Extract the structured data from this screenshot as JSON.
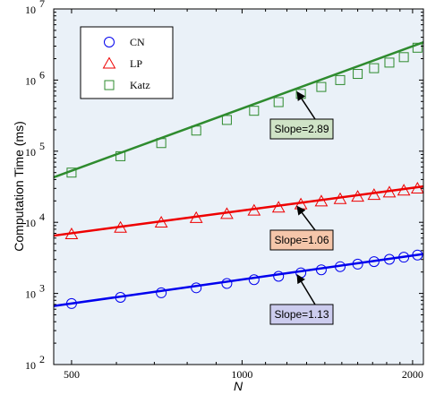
{
  "chart_data": {
    "type": "scatter",
    "title": "",
    "xlabel": "N",
    "ylabel": "Computation Time (ms)",
    "xscale": "log",
    "yscale": "log",
    "xlim": [
      465,
      2090
    ],
    "ylim": [
      100,
      10000000
    ],
    "xticks": [
      500,
      1000,
      2000
    ],
    "xtick_labels": [
      "500",
      "1000",
      "2000"
    ],
    "yticks": [
      100,
      1000,
      10000,
      100000,
      1000000,
      10000000
    ],
    "yticks_exp": [
      "2",
      "3",
      "4",
      "5",
      "6",
      "7"
    ],
    "ytick_base": "10",
    "x": [
      500,
      610,
      720,
      830,
      940,
      1050,
      1160,
      1270,
      1380,
      1490,
      1600,
      1710,
      1820,
      1930,
      2040
    ],
    "series": [
      {
        "name": "CN",
        "marker": "circle",
        "color": "#0000ee",
        "values": [
          720,
          880,
          1020,
          1200,
          1380,
          1560,
          1740,
          1950,
          2150,
          2380,
          2580,
          2800,
          3020,
          3230,
          3470
        ],
        "fit": {
          "x": [
            465,
            2090
          ],
          "y": [
            666,
            3580
          ]
        },
        "slope_label": "Slope=1.13",
        "label_fill": "#ccccee"
      },
      {
        "name": "LP",
        "marker": "triangle",
        "color": "#ee0000",
        "values": [
          6800,
          8400,
          9900,
          11500,
          13100,
          14600,
          16100,
          17900,
          19700,
          21200,
          22900,
          24300,
          26300,
          28000,
          29800
        ],
        "fit": {
          "x": [
            465,
            2090
          ],
          "y": [
            6500,
            32000
          ]
        },
        "slope_label": "Slope=1.06",
        "label_fill": "#f5c6aa"
      },
      {
        "name": "Katz",
        "marker": "square",
        "color": "#2e8b2e",
        "values": [
          50000,
          85000,
          130000,
          195000,
          275000,
          370000,
          490000,
          640000,
          800000,
          1000000,
          1220000,
          1470000,
          1760000,
          2100000,
          2850000
        ],
        "fit": {
          "x": [
            465,
            2090
          ],
          "y": [
            43000,
            3400000
          ]
        },
        "slope_label": "Slope=2.89",
        "label_fill": "#cfe3c6"
      }
    ],
    "legend": "top-left",
    "grid": false,
    "background": "#eaf1f8"
  }
}
